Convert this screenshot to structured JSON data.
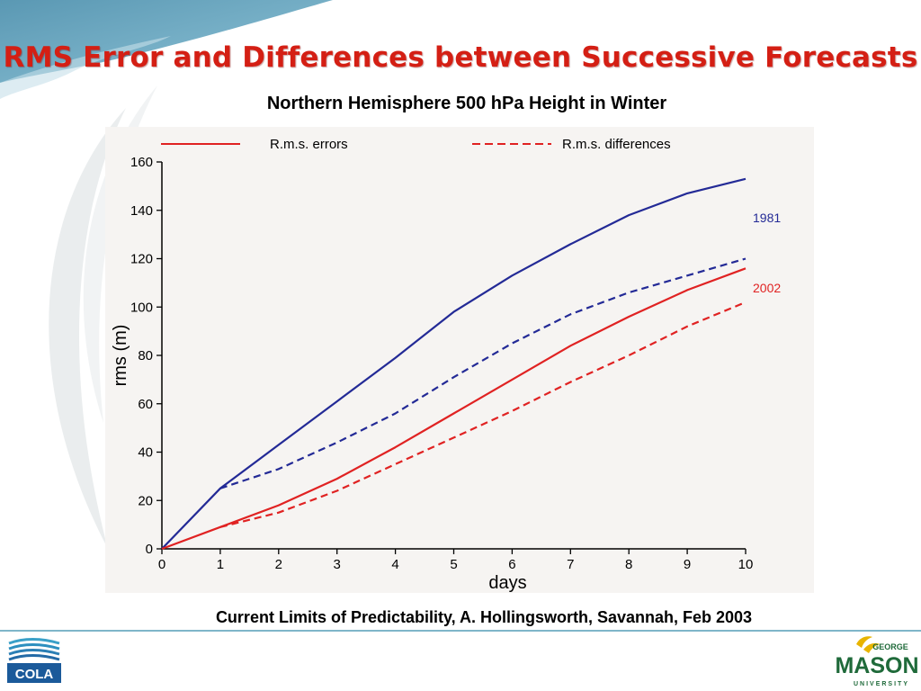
{
  "slide": {
    "title": "RMS Error and Differences between Successive Forecasts",
    "subtitle": "Northern Hemisphere 500 hPa Height in Winter",
    "caption": "Current Limits of Predictability, A. Hollingsworth, Savannah, Feb 2003"
  },
  "logos": {
    "left_text": "COLA",
    "right_top": "GEORGE",
    "right_main": "MASON",
    "right_bottom": "UNIVERSITY"
  },
  "colors": {
    "title": "#d41f14",
    "series_1981": "#232a96",
    "series_2002": "#e02222",
    "panel_bg": "#f6f4f2",
    "rule": "#7fb6c9"
  },
  "chart_data": {
    "type": "line",
    "xlabel": "days",
    "ylabel": "rms (m)",
    "xlim": [
      0,
      10
    ],
    "ylim": [
      0,
      160
    ],
    "x_ticks": [
      0,
      1,
      2,
      3,
      4,
      5,
      6,
      7,
      8,
      9,
      10
    ],
    "y_ticks": [
      0,
      20,
      40,
      60,
      80,
      100,
      120,
      140,
      160
    ],
    "grid": false,
    "legend": {
      "placement": "top",
      "entries": [
        {
          "label": "R.m.s. errors",
          "style": "solid"
        },
        {
          "label": "R.m.s. differences",
          "style": "dashed"
        }
      ]
    },
    "x": [
      0,
      1,
      2,
      3,
      4,
      5,
      6,
      7,
      8,
      9,
      10
    ],
    "series": [
      {
        "label": "1981",
        "kind": "errors",
        "dash": false,
        "color": "#232a96",
        "values": [
          0,
          25,
          43,
          61,
          79,
          98,
          113,
          126,
          138,
          147,
          153
        ]
      },
      {
        "label": "1981",
        "kind": "differences",
        "dash": true,
        "color": "#232a96",
        "values": [
          null,
          25,
          33,
          44,
          56,
          71,
          85,
          97,
          106,
          113,
          120
        ]
      },
      {
        "label": "2002",
        "kind": "errors",
        "dash": false,
        "color": "#e02222",
        "values": [
          0,
          9,
          18,
          29,
          42,
          56,
          70,
          84,
          96,
          107,
          116
        ]
      },
      {
        "label": "2002",
        "kind": "differences",
        "dash": true,
        "color": "#e02222",
        "values": [
          null,
          9,
          15,
          24,
          35,
          46,
          57,
          69,
          80,
          92,
          102
        ]
      }
    ],
    "series_labels": [
      {
        "text": "1981",
        "anchor_y": 137,
        "color": "#232a96"
      },
      {
        "text": "2002",
        "anchor_y": 108,
        "color": "#e02222"
      }
    ]
  }
}
